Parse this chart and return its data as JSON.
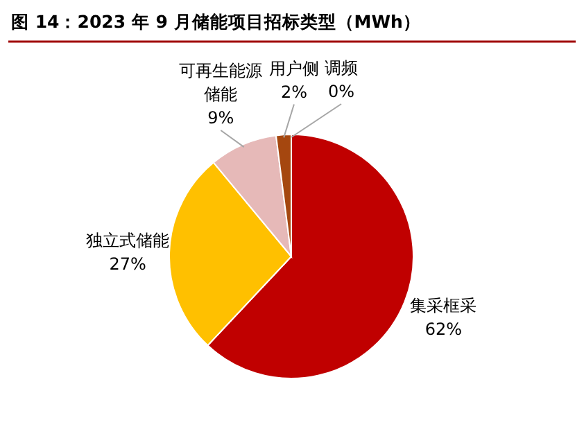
{
  "chart_data": {
    "type": "pie",
    "title": "图 14：2023 年 9 月储能项目招标类型（MWh）",
    "categories": [
      "集采框采",
      "独立式储能",
      "可再生能源储能",
      "用户侧",
      "调频"
    ],
    "values": [
      62,
      27,
      9,
      2,
      0
    ],
    "value_labels": [
      "62%",
      "27%",
      "9%",
      "2%",
      "0%"
    ],
    "colors": [
      "#c00000",
      "#ffc000",
      "#e6b9b8",
      "#a5470f",
      null
    ]
  }
}
